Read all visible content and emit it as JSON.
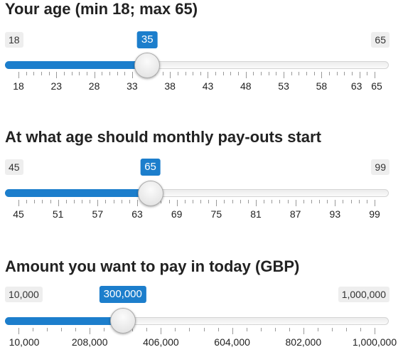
{
  "sliders": [
    {
      "label": "Your age (min 18; max 65)",
      "min": 18,
      "max": 65,
      "value": 35,
      "min_label": "18",
      "max_label": "65",
      "value_label": "35",
      "ticks": [
        "18",
        "23",
        "28",
        "33",
        "38",
        "43",
        "48",
        "53",
        "58",
        "63",
        "65"
      ],
      "tick_values": [
        18,
        23,
        28,
        33,
        38,
        43,
        48,
        53,
        58,
        63,
        65
      ]
    },
    {
      "label": "At what age should monthly pay-outs start",
      "min": 45,
      "max": 99,
      "value": 65,
      "min_label": "45",
      "max_label": "99",
      "value_label": "65",
      "ticks": [
        "45",
        "51",
        "57",
        "63",
        "69",
        "75",
        "81",
        "87",
        "93",
        "99"
      ],
      "tick_values": [
        45,
        51,
        57,
        63,
        69,
        75,
        81,
        87,
        93,
        99
      ]
    },
    {
      "label": "Amount you want to pay in today (GBP)",
      "min": 10000,
      "max": 1000000,
      "value": 300000,
      "min_label": "10,000",
      "max_label": "1,000,000",
      "value_label": "300,000",
      "ticks": [
        "10,000",
        "208,000",
        "406,000",
        "604,000",
        "802,000",
        "1,000,000"
      ],
      "tick_values": [
        10000,
        208000,
        406000,
        604000,
        802000,
        1000000
      ]
    }
  ]
}
